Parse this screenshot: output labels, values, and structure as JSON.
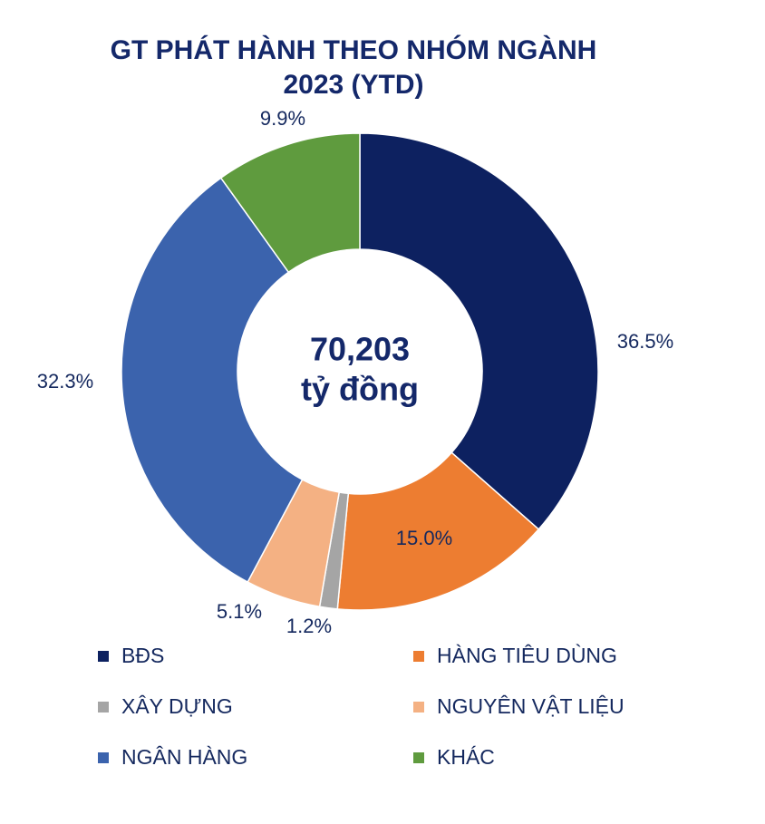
{
  "chart_data": {
    "type": "donut",
    "title": [
      "GT PHÁT HÀNH THEO NHÓM NGÀNH",
      "2023 (YTD)"
    ],
    "center_text": [
      "70,203",
      "tỷ đồng"
    ],
    "categories": [
      "BĐS",
      "HÀNG TIÊU DÙNG",
      "XÂY DỰNG",
      "NGUYÊN VẬT LIỆU",
      "NGÂN HÀNG",
      "KHÁC"
    ],
    "values": [
      36.5,
      15.0,
      1.2,
      5.1,
      32.3,
      9.9
    ],
    "value_labels": [
      "36.5%",
      "15.0%",
      "1.2%",
      "5.1%",
      "32.3%",
      "9.9%"
    ],
    "colors": [
      "#0d2160",
      "#ed7d31",
      "#a5a5a5",
      "#f4b183",
      "#3b63ad",
      "#5f9b3e"
    ],
    "legend": "bottom"
  }
}
